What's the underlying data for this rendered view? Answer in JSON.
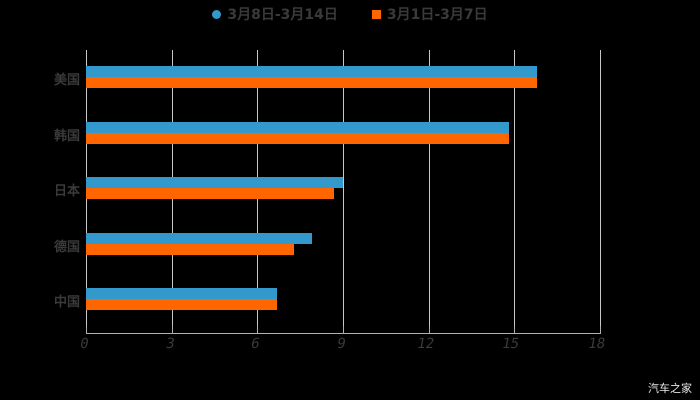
{
  "legend": [
    {
      "label": "3月8日-3月14日",
      "color": "#3399cc",
      "shape": "circle"
    },
    {
      "label": "3月1日-3月7日",
      "color": "#ff6600",
      "shape": "square"
    }
  ],
  "watermark": "汽车之家",
  "chart_data": {
    "type": "bar",
    "orientation": "horizontal",
    "title": "",
    "xlabel": "",
    "ylabel": "",
    "categories": [
      "美国",
      "韩国",
      "日本",
      "德国",
      "中国"
    ],
    "series": [
      {
        "name": "3月8日-3月14日",
        "color": "#3399cc",
        "values": [
          15.8,
          14.8,
          9.0,
          7.9,
          6.7
        ]
      },
      {
        "name": "3月1日-3月7日",
        "color": "#ff6600",
        "values": [
          15.8,
          14.8,
          8.7,
          7.3,
          6.7
        ]
      }
    ],
    "xlim": [
      0,
      18
    ],
    "xticks": [
      "0",
      "3",
      "6",
      "9",
      "12",
      "15",
      "18"
    ],
    "grid": "vertical",
    "legend_position": "top"
  }
}
